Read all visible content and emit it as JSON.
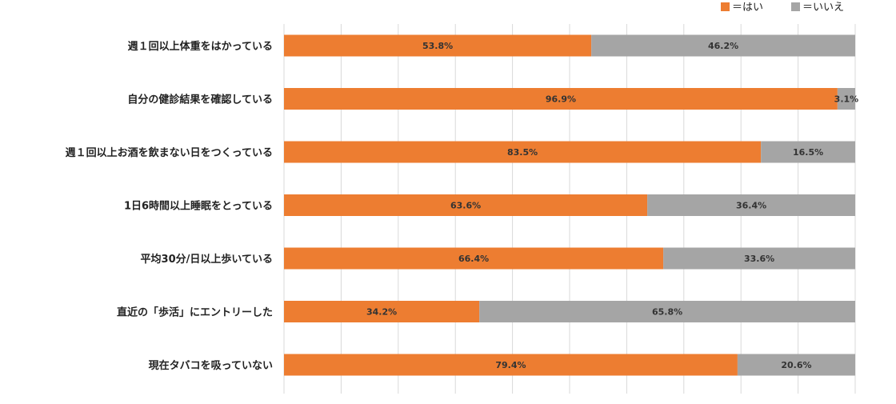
{
  "chart_data": {
    "type": "bar",
    "orientation": "horizontal",
    "stacked": true,
    "title": "",
    "xlabel": "",
    "ylabel": "",
    "xlim": [
      0,
      100
    ],
    "grid": true,
    "legend_position": "top-right",
    "categories": [
      "週１回以上体重をはかっている",
      "自分の健診結果を確認している",
      "週１回以上お酒を飲まない日をつくっている",
      "1日6時間以上睡眠をとっている",
      "平均30分/日以上歩いている",
      "直近の「歩活」にエントリーした",
      "現在タバコを吸っていない"
    ],
    "series": [
      {
        "name": "＝はい",
        "color": "#ED7D31",
        "values": [
          53.8,
          96.9,
          83.5,
          63.6,
          66.4,
          34.2,
          79.4
        ],
        "labels": [
          "53.8%",
          "96.9%",
          "83.5%",
          "63.6%",
          "66.4%",
          "34.2%",
          "79.4%"
        ]
      },
      {
        "name": "＝いいえ",
        "color": "#A5A5A5",
        "values": [
          46.2,
          3.1,
          16.5,
          36.4,
          33.6,
          65.8,
          20.6
        ],
        "labels": [
          "46.2%",
          "3.1%",
          "16.5%",
          "36.4%",
          "33.6%",
          "65.8%",
          "20.6%"
        ]
      }
    ]
  }
}
